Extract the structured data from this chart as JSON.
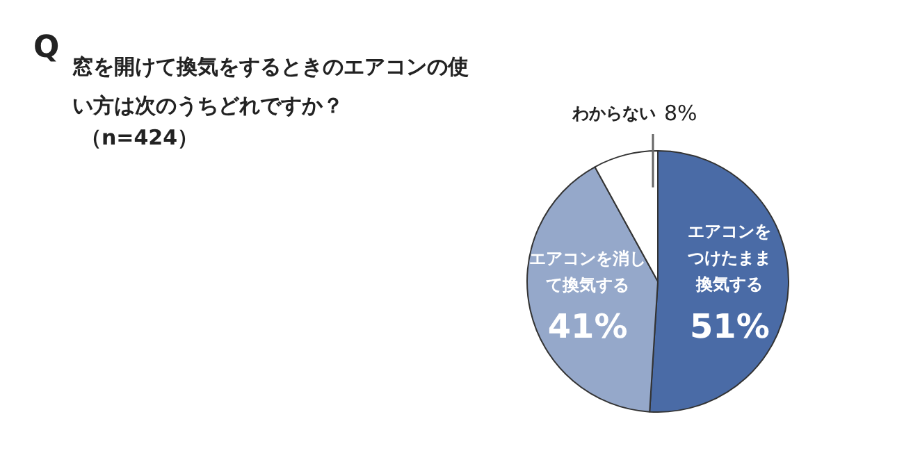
{
  "chart_data": {
    "type": "pie",
    "title": "窓を開けて換気をするときのエアコンの使い方は次のうちどれですか？",
    "subtitle": "（n=424）",
    "annotations": [
      "Q"
    ],
    "categories": [
      "エアコンをつけたまま換気する",
      "エアコンを消して換気する",
      "わからない"
    ],
    "values": [
      51,
      41,
      8
    ],
    "colors": [
      "#4a6ba6",
      "#95a8ca",
      "#ffffff"
    ],
    "value_labels": [
      "51%",
      "41%",
      "8%"
    ],
    "legend": false
  }
}
